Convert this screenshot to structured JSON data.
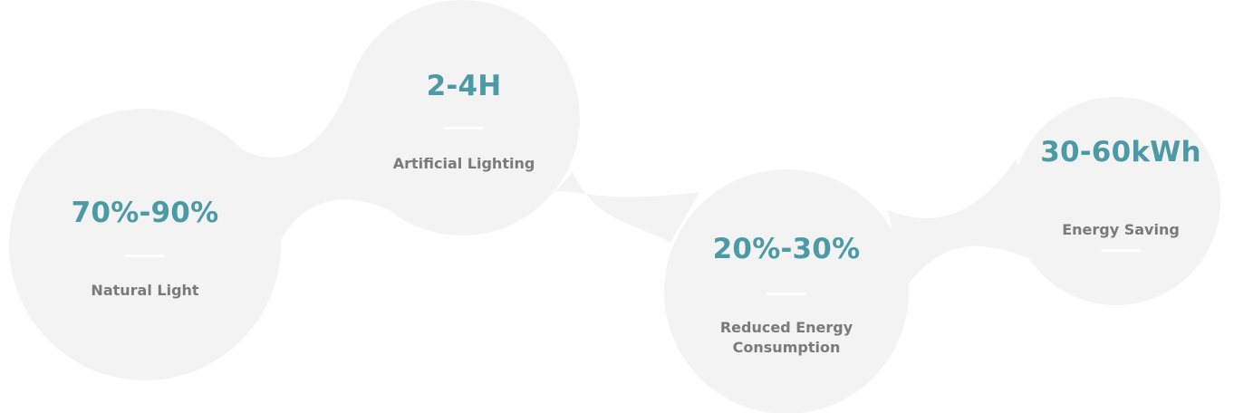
{
  "colors": {
    "blob_fill": "#f3f3f3",
    "value_accent": "#4b9aa6",
    "label_text": "#7a7a7a",
    "divider": "#ffffff"
  },
  "stats": [
    {
      "value": "70%-90%",
      "label": "Natural Light"
    },
    {
      "value": "2-4H",
      "label": "Artificial Lighting"
    },
    {
      "value": "20%-30%",
      "label": "Reduced Energy\nConsumption"
    },
    {
      "value": "30-60kWh",
      "label": "Energy Saving"
    }
  ]
}
